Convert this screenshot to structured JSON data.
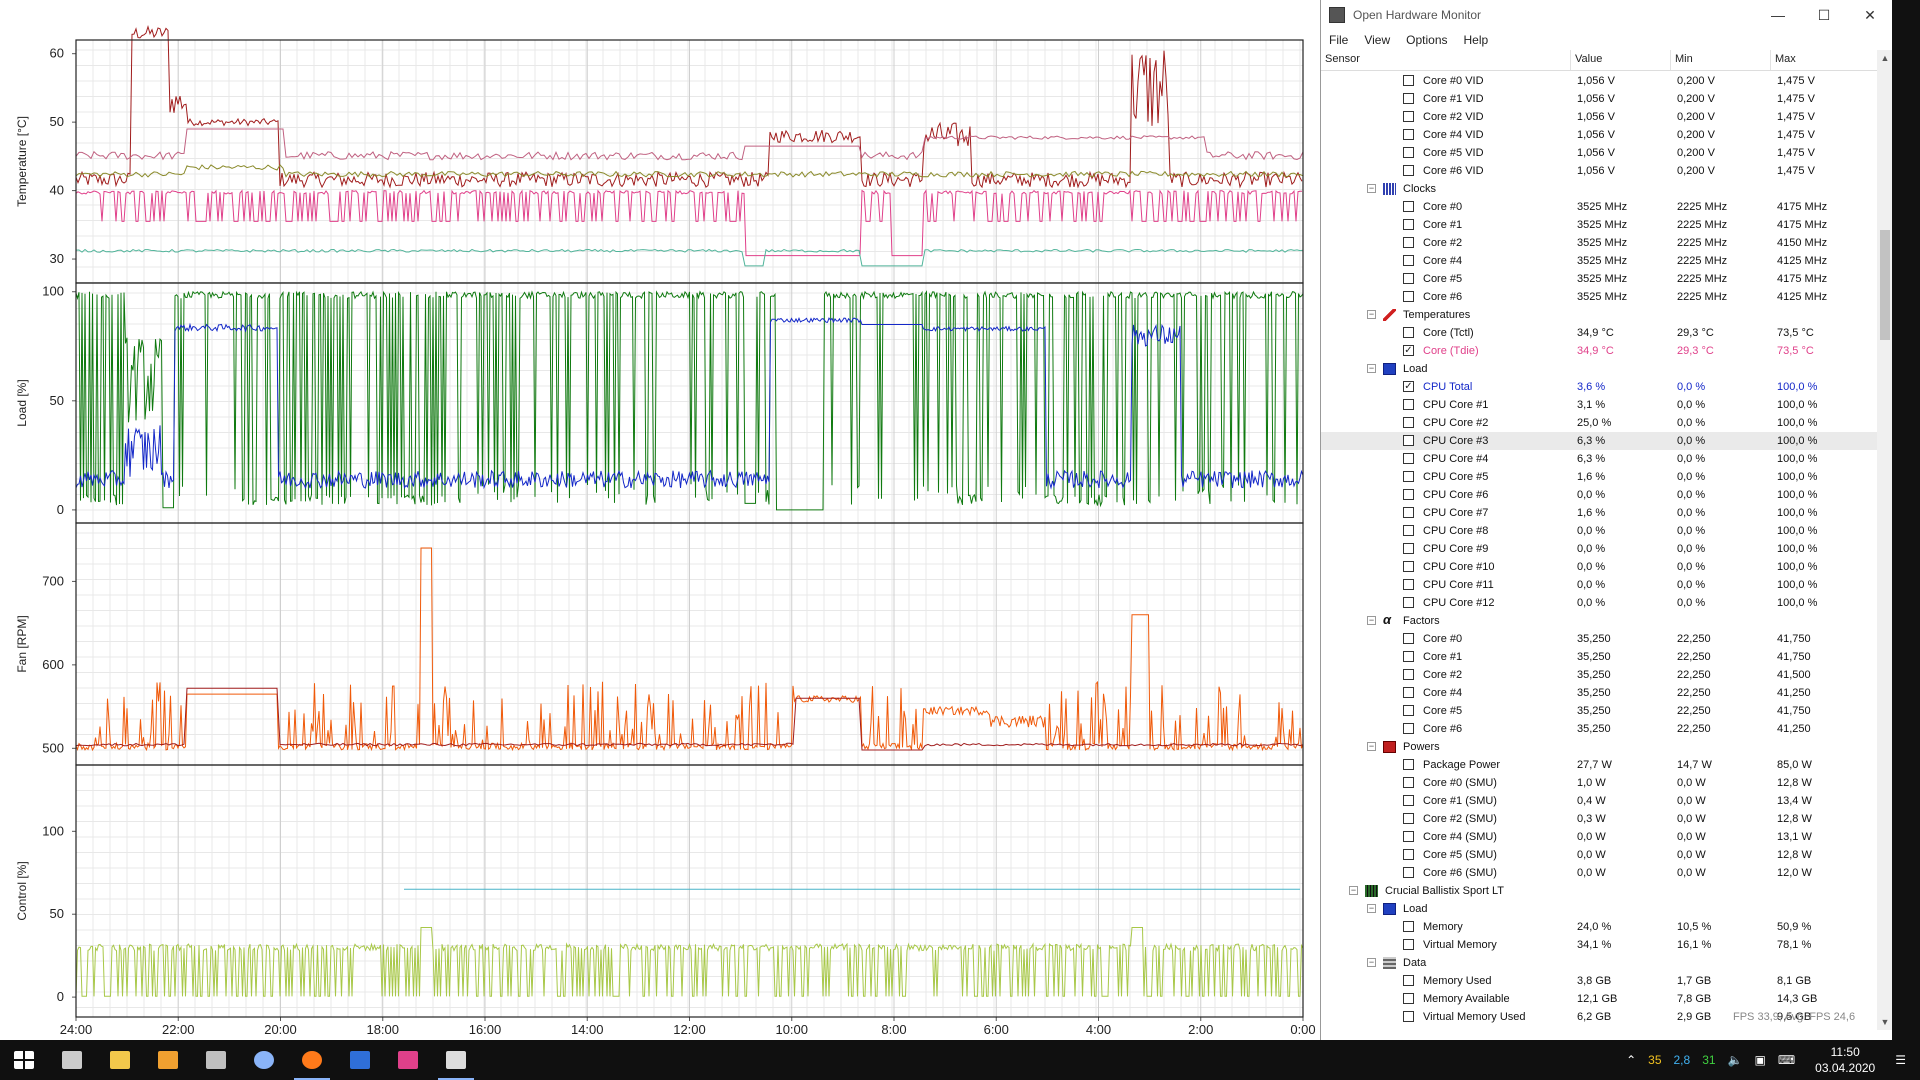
{
  "plot": {
    "x_ticks": [
      "24:00",
      "22:00",
      "20:00",
      "18:00",
      "16:00",
      "14:00",
      "12:00",
      "10:00",
      "8:00",
      "6:00",
      "4:00",
      "2:00",
      "0:00"
    ],
    "panels": [
      {
        "key": "temp",
        "label": "Temperature [°C]",
        "ticks": [
          "60",
          "50",
          "40",
          "30"
        ],
        "tick_values": [
          60,
          50,
          40,
          30
        ],
        "ymin": 26.5,
        "ymax": 62
      },
      {
        "key": "load",
        "label": "Load [%]",
        "ticks": [
          "100",
          "50",
          "0"
        ],
        "tick_values": [
          100,
          50,
          0
        ],
        "ymin": -6,
        "ymax": 104
      },
      {
        "key": "fan",
        "label": "Fan [RPM]",
        "ticks": [
          "700",
          "600",
          "500"
        ],
        "tick_values": [
          700,
          600,
          500
        ],
        "ymin": 480,
        "ymax": 770
      },
      {
        "key": "control",
        "label": "Control [%]",
        "ticks": [
          "100",
          "50",
          "0"
        ],
        "tick_values": [
          100,
          50,
          0
        ],
        "ymin": -12,
        "ymax": 140
      }
    ],
    "colors": {
      "dark_red": "#a01c1c",
      "pink": "#e0408a",
      "olive": "#8a8a2a",
      "teal": "#50b49a",
      "mauve": "#c06080",
      "green": "#107a10",
      "blue": "#1428c8",
      "orange": "#f05a0a",
      "lime": "#a8c848",
      "cyan": "#48b4c8"
    }
  },
  "window": {
    "title": "Open Hardware Monitor",
    "menu": [
      "File",
      "View",
      "Options",
      "Help"
    ],
    "columns": [
      "Sensor",
      "Value",
      "Min",
      "Max"
    ]
  },
  "rows": [
    {
      "type": "item",
      "name": "Core #0 VID",
      "value": "1,056 V",
      "min": "0,200 V",
      "max": "1,475 V"
    },
    {
      "type": "item",
      "name": "Core #1 VID",
      "value": "1,056 V",
      "min": "0,200 V",
      "max": "1,475 V"
    },
    {
      "type": "item",
      "name": "Core #2 VID",
      "value": "1,056 V",
      "min": "0,200 V",
      "max": "1,475 V"
    },
    {
      "type": "item",
      "name": "Core #4 VID",
      "value": "1,056 V",
      "min": "0,200 V",
      "max": "1,475 V"
    },
    {
      "type": "item",
      "name": "Core #5 VID",
      "value": "1,056 V",
      "min": "0,200 V",
      "max": "1,475 V"
    },
    {
      "type": "item",
      "name": "Core #6 VID",
      "value": "1,056 V",
      "min": "0,200 V",
      "max": "1,475 V"
    },
    {
      "type": "group",
      "name": "Clocks",
      "icon": "clocks-icon"
    },
    {
      "type": "item",
      "name": "Core #0",
      "value": "3525 MHz",
      "min": "2225 MHz",
      "max": "4175 MHz"
    },
    {
      "type": "item",
      "name": "Core #1",
      "value": "3525 MHz",
      "min": "2225 MHz",
      "max": "4175 MHz"
    },
    {
      "type": "item",
      "name": "Core #2",
      "value": "3525 MHz",
      "min": "2225 MHz",
      "max": "4150 MHz"
    },
    {
      "type": "item",
      "name": "Core #4",
      "value": "3525 MHz",
      "min": "2225 MHz",
      "max": "4125 MHz"
    },
    {
      "type": "item",
      "name": "Core #5",
      "value": "3525 MHz",
      "min": "2225 MHz",
      "max": "4175 MHz"
    },
    {
      "type": "item",
      "name": "Core #6",
      "value": "3525 MHz",
      "min": "2225 MHz",
      "max": "4125 MHz"
    },
    {
      "type": "group",
      "name": "Temperatures",
      "icon": "thermometer-icon"
    },
    {
      "type": "item",
      "name": "Core (Tctl)",
      "value": "34,9 °C",
      "min": "29,3 °C",
      "max": "73,5 °C"
    },
    {
      "type": "item",
      "name": "Core (Tdie)",
      "value": "34,9 °C",
      "min": "29,3 °C",
      "max": "73,5 °C",
      "checked": true,
      "color": "#e0408a"
    },
    {
      "type": "group",
      "name": "Load",
      "icon": "load-icon"
    },
    {
      "type": "item",
      "name": "CPU Total",
      "value": "3,6 %",
      "min": "0,0 %",
      "max": "100,0 %",
      "checked": true,
      "color": "#1428c8"
    },
    {
      "type": "item",
      "name": "CPU Core #1",
      "value": "3,1 %",
      "min": "0,0 %",
      "max": "100,0 %"
    },
    {
      "type": "item",
      "name": "CPU Core #2",
      "value": "25,0 %",
      "min": "0,0 %",
      "max": "100,0 %"
    },
    {
      "type": "item",
      "name": "CPU Core #3",
      "value": "6,3 %",
      "min": "0,0 %",
      "max": "100,0 %",
      "hl": true
    },
    {
      "type": "item",
      "name": "CPU Core #4",
      "value": "6,3 %",
      "min": "0,0 %",
      "max": "100,0 %"
    },
    {
      "type": "item",
      "name": "CPU Core #5",
      "value": "1,6 %",
      "min": "0,0 %",
      "max": "100,0 %"
    },
    {
      "type": "item",
      "name": "CPU Core #6",
      "value": "0,0 %",
      "min": "0,0 %",
      "max": "100,0 %"
    },
    {
      "type": "item",
      "name": "CPU Core #7",
      "value": "1,6 %",
      "min": "0,0 %",
      "max": "100,0 %"
    },
    {
      "type": "item",
      "name": "CPU Core #8",
      "value": "0,0 %",
      "min": "0,0 %",
      "max": "100,0 %"
    },
    {
      "type": "item",
      "name": "CPU Core #9",
      "value": "0,0 %",
      "min": "0,0 %",
      "max": "100,0 %"
    },
    {
      "type": "item",
      "name": "CPU Core #10",
      "value": "0,0 %",
      "min": "0,0 %",
      "max": "100,0 %"
    },
    {
      "type": "item",
      "name": "CPU Core #11",
      "value": "0,0 %",
      "min": "0,0 %",
      "max": "100,0 %"
    },
    {
      "type": "item",
      "name": "CPU Core #12",
      "value": "0,0 %",
      "min": "0,0 %",
      "max": "100,0 %"
    },
    {
      "type": "group",
      "name": "Factors",
      "icon": "alpha-icon"
    },
    {
      "type": "item",
      "name": "Core #0",
      "value": "35,250",
      "min": "22,250",
      "max": "41,750"
    },
    {
      "type": "item",
      "name": "Core #1",
      "value": "35,250",
      "min": "22,250",
      "max": "41,750"
    },
    {
      "type": "item",
      "name": "Core #2",
      "value": "35,250",
      "min": "22,250",
      "max": "41,500"
    },
    {
      "type": "item",
      "name": "Core #4",
      "value": "35,250",
      "min": "22,250",
      "max": "41,250"
    },
    {
      "type": "item",
      "name": "Core #5",
      "value": "35,250",
      "min": "22,250",
      "max": "41,750"
    },
    {
      "type": "item",
      "name": "Core #6",
      "value": "35,250",
      "min": "22,250",
      "max": "41,250"
    },
    {
      "type": "group",
      "name": "Powers",
      "icon": "power-icon"
    },
    {
      "type": "item",
      "name": "Package Power",
      "value": "27,7 W",
      "min": "14,7 W",
      "max": "85,0 W"
    },
    {
      "type": "item",
      "name": "Core #0 (SMU)",
      "value": "1,0 W",
      "min": "0,0 W",
      "max": "12,8 W"
    },
    {
      "type": "item",
      "name": "Core #1 (SMU)",
      "value": "0,4 W",
      "min": "0,0 W",
      "max": "13,4 W"
    },
    {
      "type": "item",
      "name": "Core #2 (SMU)",
      "value": "0,3 W",
      "min": "0,0 W",
      "max": "12,8 W"
    },
    {
      "type": "item",
      "name": "Core #4 (SMU)",
      "value": "0,0 W",
      "min": "0,0 W",
      "max": "13,1 W"
    },
    {
      "type": "item",
      "name": "Core #5 (SMU)",
      "value": "0,0 W",
      "min": "0,0 W",
      "max": "12,8 W"
    },
    {
      "type": "item",
      "name": "Core #6 (SMU)",
      "value": "0,0 W",
      "min": "0,0 W",
      "max": "12,0 W"
    },
    {
      "type": "hardware",
      "name": "Crucial Ballistix Sport LT",
      "icon": "ram-icon"
    },
    {
      "type": "group",
      "name": "Load",
      "icon": "load-icon"
    },
    {
      "type": "item",
      "name": "Memory",
      "value": "24,0 %",
      "min": "10,5 %",
      "max": "50,9 %"
    },
    {
      "type": "item",
      "name": "Virtual Memory",
      "value": "34,1 %",
      "min": "16,1 %",
      "max": "78,1 %"
    },
    {
      "type": "group",
      "name": "Data",
      "icon": "data-icon"
    },
    {
      "type": "item",
      "name": "Memory Used",
      "value": "3,8 GB",
      "min": "1,7 GB",
      "max": "8,1 GB"
    },
    {
      "type": "item",
      "name": "Memory Available",
      "value": "12,1 GB",
      "min": "7,8 GB",
      "max": "14,3 GB"
    },
    {
      "type": "item",
      "name": "Virtual Memory Used",
      "value": "6,2 GB",
      "min": "2,9 GB",
      "max": "9,5 GB"
    }
  ],
  "overlay": {
    "fps": "FPS 33,9, Avg. FPS 24,6"
  },
  "taskbar": {
    "apps": [
      "start-icon",
      "task-view-icon",
      "file-explorer-icon",
      "media-player-icon",
      "phone-icon",
      "circle-app-icon",
      "firefox-icon",
      "cloud-app-icon",
      "paint-app-icon",
      "monitor-app-icon"
    ],
    "tray": {
      "num1": "35",
      "num2": "2,8",
      "num3": "31",
      "time": "11:50",
      "date": "03.04.2020"
    }
  }
}
